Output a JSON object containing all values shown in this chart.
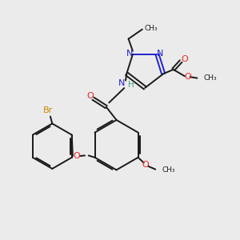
{
  "background_color": "#ebebeb",
  "bond_color": "#1a1a1a",
  "nitrogen_color": "#2222cc",
  "oxygen_color": "#ee2222",
  "bromine_color": "#cc8800",
  "hydrogen_color": "#449988",
  "figsize": [
    3.0,
    3.0
  ],
  "dpi": 100,
  "xlim": [
    0,
    10
  ],
  "ylim": [
    0,
    10
  ]
}
